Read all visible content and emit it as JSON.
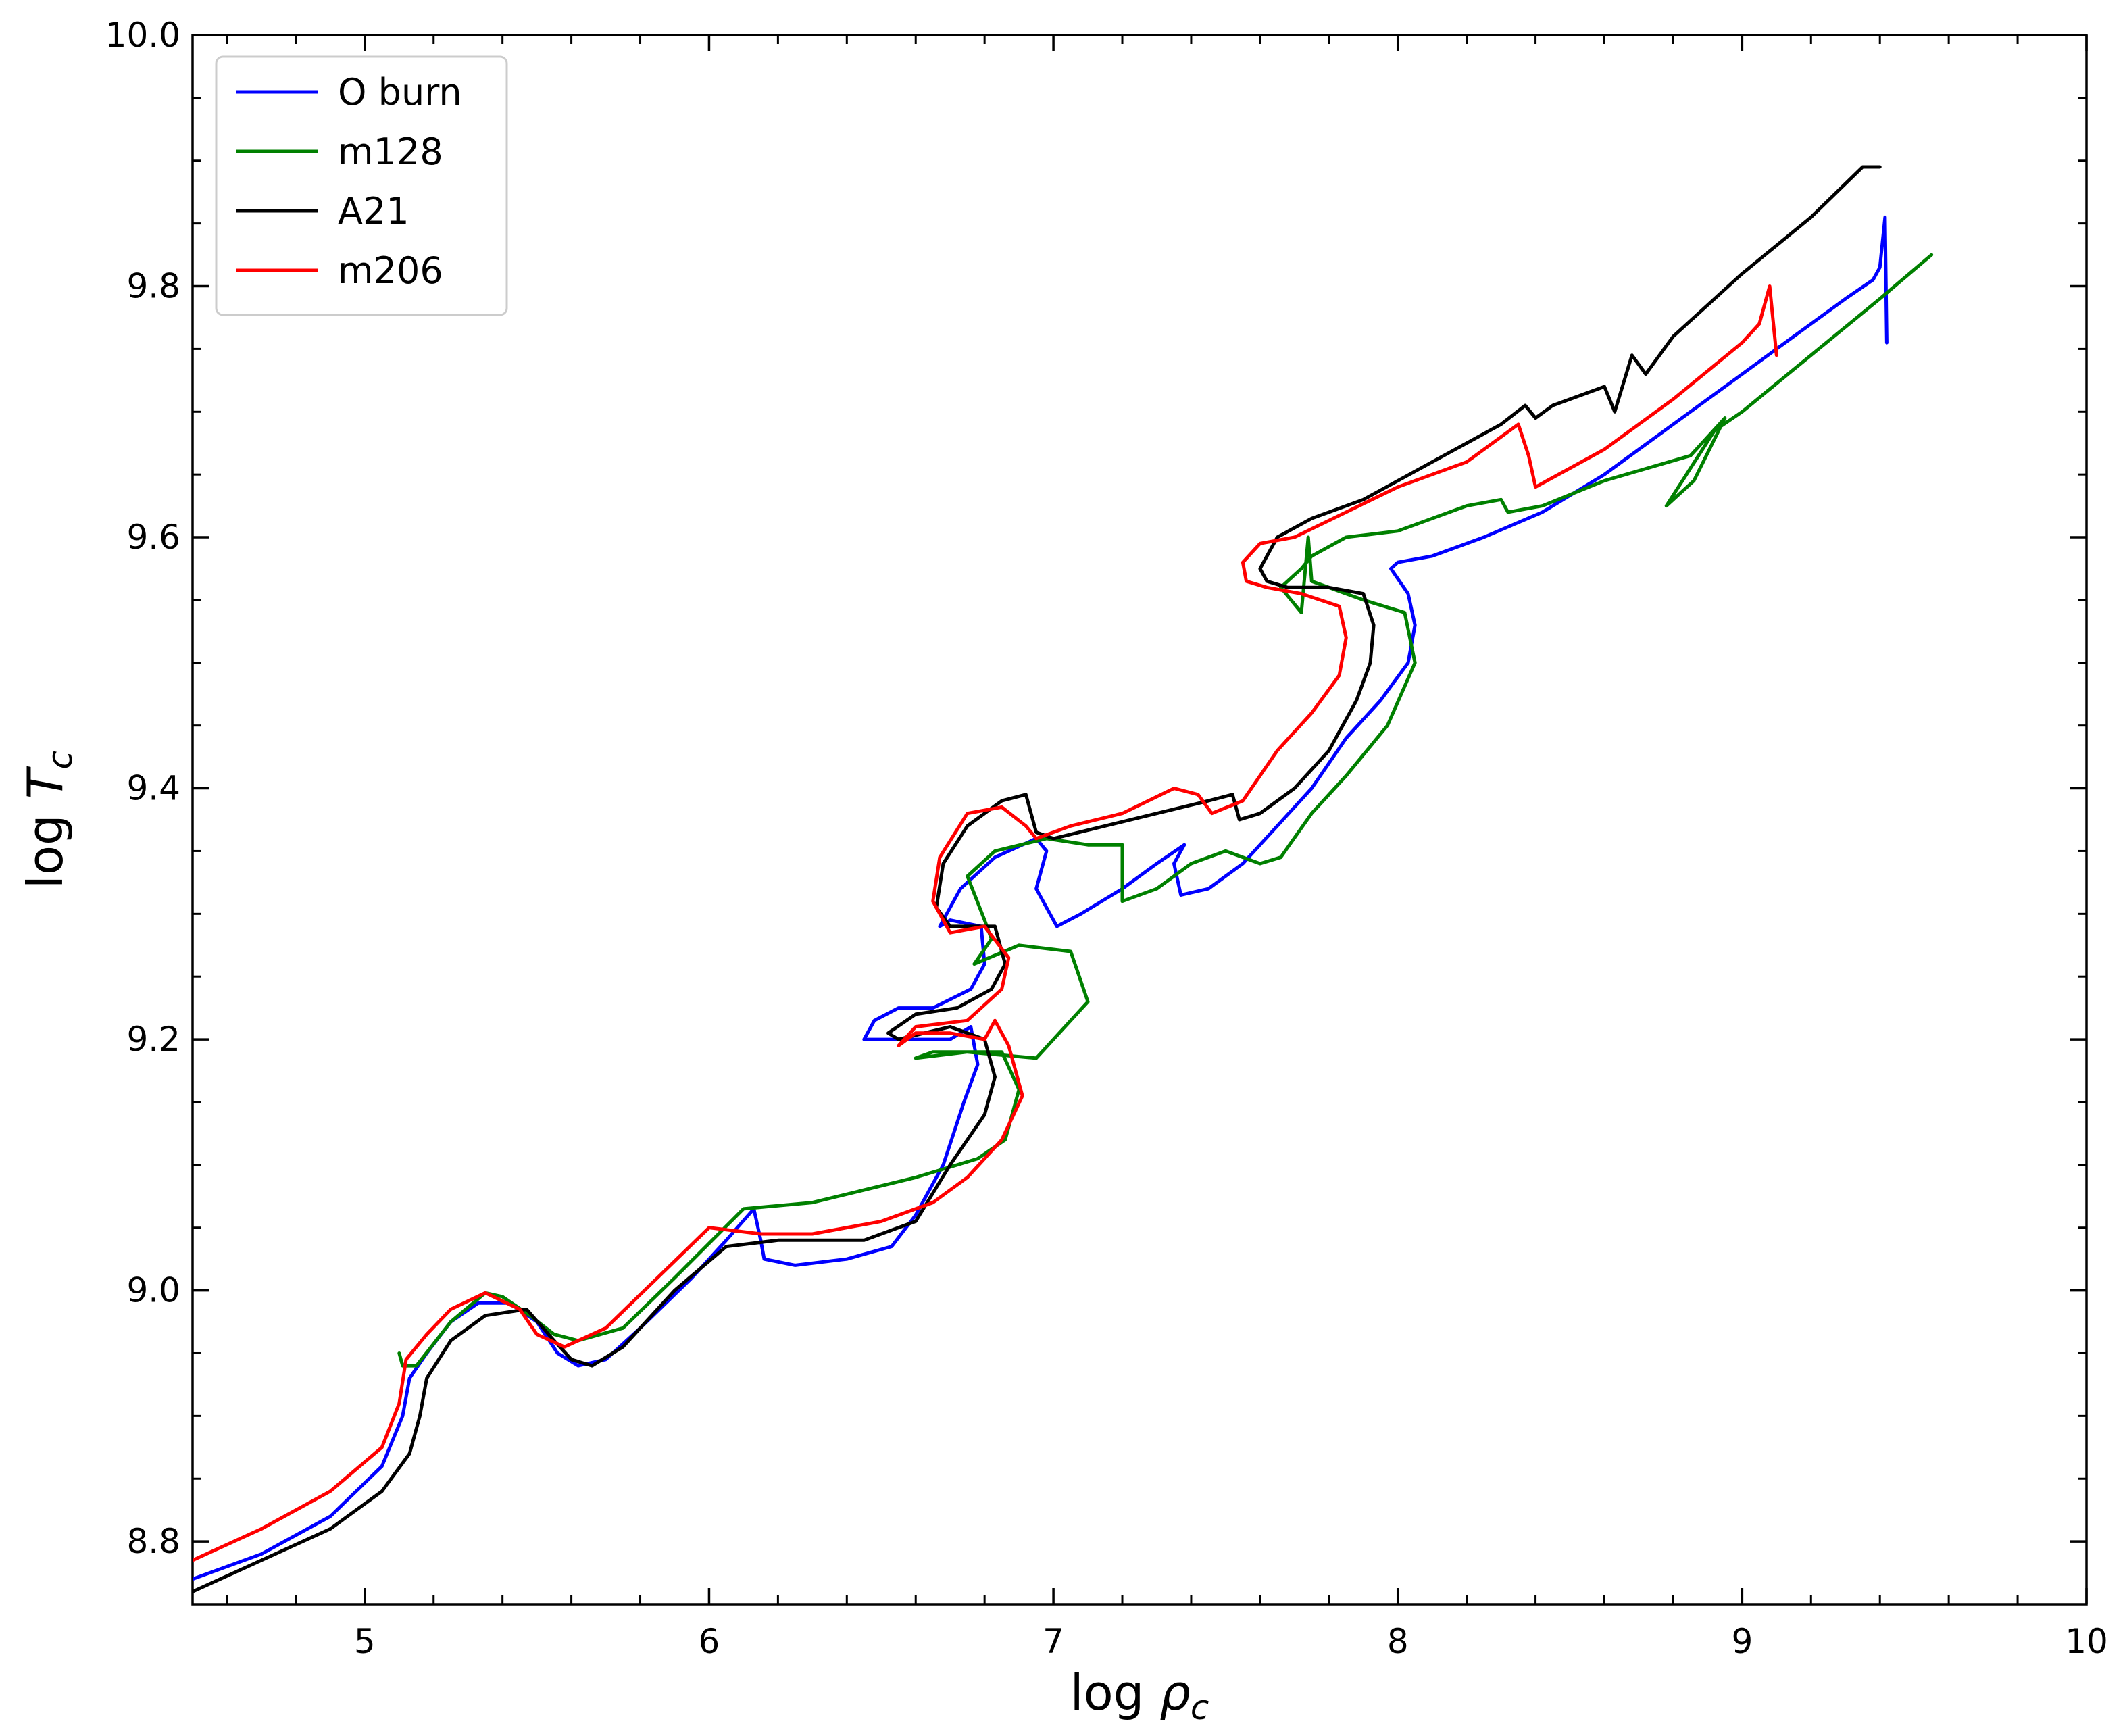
{
  "chart_data": {
    "type": "line",
    "xlabel": "log ρc",
    "ylabel": "log Tc",
    "xlim": [
      4.5,
      10.0
    ],
    "ylim": [
      8.75,
      10.0
    ],
    "grid": false,
    "legend_position": "top-left",
    "xticks": [
      5,
      6,
      7,
      8,
      9,
      10
    ],
    "xtick_labels": [
      "5",
      "6",
      "7",
      "8",
      "9",
      "10"
    ],
    "yticks": [
      8.8,
      9.0,
      9.2,
      9.4,
      9.6,
      9.8,
      10.0
    ],
    "ytick_labels": [
      "8.8",
      "9.0",
      "9.2",
      "9.4",
      "9.6",
      "9.8",
      "10.0"
    ],
    "series": [
      {
        "name": "O burn",
        "color": "#0000ff",
        "points": [
          [
            4.5,
            8.77
          ],
          [
            4.7,
            8.79
          ],
          [
            4.9,
            8.82
          ],
          [
            5.05,
            8.86
          ],
          [
            5.11,
            8.9
          ],
          [
            5.13,
            8.93
          ],
          [
            5.18,
            8.95
          ],
          [
            5.25,
            8.975
          ],
          [
            5.33,
            8.99
          ],
          [
            5.42,
            8.99
          ],
          [
            5.5,
            8.975
          ],
          [
            5.56,
            8.95
          ],
          [
            5.62,
            8.94
          ],
          [
            5.7,
            8.945
          ],
          [
            5.8,
            8.97
          ],
          [
            5.95,
            9.01
          ],
          [
            6.05,
            9.04
          ],
          [
            6.13,
            9.065
          ],
          [
            6.15,
            9.04
          ],
          [
            6.16,
            9.025
          ],
          [
            6.25,
            9.02
          ],
          [
            6.4,
            9.025
          ],
          [
            6.53,
            9.035
          ],
          [
            6.6,
            9.06
          ],
          [
            6.68,
            9.1
          ],
          [
            6.74,
            9.15
          ],
          [
            6.78,
            9.18
          ],
          [
            6.76,
            9.21
          ],
          [
            6.7,
            9.2
          ],
          [
            6.55,
            9.2
          ],
          [
            6.45,
            9.2
          ],
          [
            6.48,
            9.215
          ],
          [
            6.55,
            9.225
          ],
          [
            6.65,
            9.225
          ],
          [
            6.76,
            9.24
          ],
          [
            6.8,
            9.26
          ],
          [
            6.79,
            9.29
          ],
          [
            6.7,
            9.295
          ],
          [
            6.67,
            9.29
          ],
          [
            6.73,
            9.32
          ],
          [
            6.83,
            9.345
          ],
          [
            6.95,
            9.36
          ],
          [
            6.98,
            9.35
          ],
          [
            6.95,
            9.32
          ],
          [
            7.01,
            9.29
          ],
          [
            7.08,
            9.3
          ],
          [
            7.2,
            9.32
          ],
          [
            7.3,
            9.34
          ],
          [
            7.38,
            9.355
          ],
          [
            7.35,
            9.34
          ],
          [
            7.37,
            9.315
          ],
          [
            7.45,
            9.32
          ],
          [
            7.55,
            9.34
          ],
          [
            7.65,
            9.37
          ],
          [
            7.75,
            9.4
          ],
          [
            7.85,
            9.44
          ],
          [
            7.95,
            9.47
          ],
          [
            8.03,
            9.5
          ],
          [
            8.05,
            9.53
          ],
          [
            8.03,
            9.555
          ],
          [
            7.98,
            9.575
          ],
          [
            8.0,
            9.58
          ],
          [
            8.1,
            9.585
          ],
          [
            8.25,
            9.6
          ],
          [
            8.42,
            9.62
          ],
          [
            8.6,
            9.65
          ],
          [
            8.8,
            9.69
          ],
          [
            9.0,
            9.73
          ],
          [
            9.15,
            9.76
          ],
          [
            9.3,
            9.79
          ],
          [
            9.38,
            9.805
          ],
          [
            9.4,
            9.815
          ],
          [
            9.415,
            9.855
          ],
          [
            9.42,
            9.755
          ]
        ]
      },
      {
        "name": "m128",
        "color": "#008000",
        "points": [
          [
            9.55,
            9.825
          ],
          [
            9.4,
            9.79
          ],
          [
            9.2,
            9.745
          ],
          [
            9.0,
            9.7
          ],
          [
            8.92,
            9.685
          ],
          [
            8.78,
            9.625
          ],
          [
            8.86,
            9.645
          ],
          [
            8.95,
            9.695
          ],
          [
            8.85,
            9.665
          ],
          [
            8.6,
            9.645
          ],
          [
            8.42,
            9.625
          ],
          [
            8.32,
            9.62
          ],
          [
            8.3,
            9.63
          ],
          [
            8.2,
            9.625
          ],
          [
            8.0,
            9.605
          ],
          [
            7.85,
            9.6
          ],
          [
            7.75,
            9.585
          ],
          [
            7.72,
            9.575
          ],
          [
            7.66,
            9.56
          ],
          [
            7.72,
            9.54
          ],
          [
            7.74,
            9.6
          ],
          [
            7.75,
            9.565
          ],
          [
            7.9,
            9.55
          ],
          [
            8.02,
            9.54
          ],
          [
            8.05,
            9.5
          ],
          [
            7.97,
            9.45
          ],
          [
            7.85,
            9.41
          ],
          [
            7.75,
            9.38
          ],
          [
            7.66,
            9.345
          ],
          [
            7.6,
            9.34
          ],
          [
            7.5,
            9.35
          ],
          [
            7.4,
            9.34
          ],
          [
            7.3,
            9.32
          ],
          [
            7.2,
            9.31
          ],
          [
            7.2,
            9.355
          ],
          [
            7.1,
            9.355
          ],
          [
            6.98,
            9.36
          ],
          [
            6.83,
            9.35
          ],
          [
            6.75,
            9.33
          ],
          [
            6.8,
            9.295
          ],
          [
            6.82,
            9.28
          ],
          [
            6.77,
            9.26
          ],
          [
            6.9,
            9.275
          ],
          [
            7.05,
            9.27
          ],
          [
            7.1,
            9.23
          ],
          [
            6.95,
            9.185
          ],
          [
            6.75,
            9.19
          ],
          [
            6.6,
            9.185
          ],
          [
            6.65,
            9.19
          ],
          [
            6.85,
            9.19
          ],
          [
            6.9,
            9.16
          ],
          [
            6.86,
            9.12
          ],
          [
            6.78,
            9.105
          ],
          [
            6.6,
            9.09
          ],
          [
            6.3,
            9.07
          ],
          [
            6.1,
            9.065
          ],
          [
            5.9,
            9.01
          ],
          [
            5.75,
            8.97
          ],
          [
            5.62,
            8.96
          ],
          [
            5.55,
            8.965
          ],
          [
            5.48,
            8.98
          ],
          [
            5.4,
            8.995
          ],
          [
            5.35,
            8.998
          ],
          [
            5.25,
            8.975
          ],
          [
            5.15,
            8.94
          ],
          [
            5.11,
            8.94
          ],
          [
            5.1,
            8.95
          ]
        ]
      },
      {
        "name": "A21",
        "color": "#000000",
        "points": [
          [
            4.5,
            8.76
          ],
          [
            4.7,
            8.785
          ],
          [
            4.9,
            8.81
          ],
          [
            5.05,
            8.84
          ],
          [
            5.13,
            8.87
          ],
          [
            5.16,
            8.9
          ],
          [
            5.18,
            8.93
          ],
          [
            5.25,
            8.96
          ],
          [
            5.35,
            8.98
          ],
          [
            5.47,
            8.985
          ],
          [
            5.55,
            8.96
          ],
          [
            5.6,
            8.945
          ],
          [
            5.66,
            8.94
          ],
          [
            5.75,
            8.955
          ],
          [
            5.9,
            9.0
          ],
          [
            6.05,
            9.035
          ],
          [
            6.2,
            9.04
          ],
          [
            6.45,
            9.04
          ],
          [
            6.6,
            9.055
          ],
          [
            6.7,
            9.1
          ],
          [
            6.8,
            9.14
          ],
          [
            6.83,
            9.17
          ],
          [
            6.8,
            9.2
          ],
          [
            6.7,
            9.21
          ],
          [
            6.55,
            9.2
          ],
          [
            6.52,
            9.205
          ],
          [
            6.6,
            9.22
          ],
          [
            6.72,
            9.225
          ],
          [
            6.82,
            9.24
          ],
          [
            6.86,
            9.26
          ],
          [
            6.83,
            9.29
          ],
          [
            6.7,
            9.29
          ],
          [
            6.66,
            9.305
          ],
          [
            6.68,
            9.34
          ],
          [
            6.75,
            9.37
          ],
          [
            6.85,
            9.39
          ],
          [
            6.92,
            9.395
          ],
          [
            6.95,
            9.365
          ],
          [
            7.0,
            9.36
          ],
          [
            7.15,
            9.37
          ],
          [
            7.3,
            9.38
          ],
          [
            7.45,
            9.39
          ],
          [
            7.52,
            9.395
          ],
          [
            7.54,
            9.375
          ],
          [
            7.6,
            9.38
          ],
          [
            7.7,
            9.4
          ],
          [
            7.8,
            9.43
          ],
          [
            7.88,
            9.47
          ],
          [
            7.92,
            9.5
          ],
          [
            7.93,
            9.53
          ],
          [
            7.9,
            9.555
          ],
          [
            7.8,
            9.56
          ],
          [
            7.68,
            9.56
          ],
          [
            7.62,
            9.565
          ],
          [
            7.6,
            9.575
          ],
          [
            7.65,
            9.6
          ],
          [
            7.75,
            9.615
          ],
          [
            7.9,
            9.63
          ],
          [
            8.1,
            9.66
          ],
          [
            8.3,
            9.69
          ],
          [
            8.37,
            9.705
          ],
          [
            8.4,
            9.695
          ],
          [
            8.45,
            9.705
          ],
          [
            8.6,
            9.72
          ],
          [
            8.63,
            9.7
          ],
          [
            8.68,
            9.745
          ],
          [
            8.72,
            9.73
          ],
          [
            8.8,
            9.76
          ],
          [
            9.0,
            9.81
          ],
          [
            9.2,
            9.855
          ],
          [
            9.35,
            9.895
          ],
          [
            9.4,
            9.895
          ]
        ]
      },
      {
        "name": "m206",
        "color": "#ff0000",
        "points": [
          [
            4.5,
            8.785
          ],
          [
            4.7,
            8.81
          ],
          [
            4.9,
            8.84
          ],
          [
            5.05,
            8.875
          ],
          [
            5.1,
            8.91
          ],
          [
            5.12,
            8.945
          ],
          [
            5.18,
            8.965
          ],
          [
            5.25,
            8.985
          ],
          [
            5.35,
            8.998
          ],
          [
            5.45,
            8.985
          ],
          [
            5.5,
            8.965
          ],
          [
            5.58,
            8.955
          ],
          [
            5.7,
            8.97
          ],
          [
            5.85,
            9.01
          ],
          [
            6.0,
            9.05
          ],
          [
            6.15,
            9.045
          ],
          [
            6.3,
            9.045
          ],
          [
            6.5,
            9.055
          ],
          [
            6.65,
            9.07
          ],
          [
            6.75,
            9.09
          ],
          [
            6.85,
            9.12
          ],
          [
            6.91,
            9.155
          ],
          [
            6.87,
            9.195
          ],
          [
            6.83,
            9.215
          ],
          [
            6.8,
            9.2
          ],
          [
            6.7,
            9.205
          ],
          [
            6.6,
            9.205
          ],
          [
            6.55,
            9.195
          ],
          [
            6.6,
            9.21
          ],
          [
            6.75,
            9.215
          ],
          [
            6.85,
            9.24
          ],
          [
            6.87,
            9.265
          ],
          [
            6.8,
            9.29
          ],
          [
            6.7,
            9.285
          ],
          [
            6.65,
            9.31
          ],
          [
            6.67,
            9.345
          ],
          [
            6.75,
            9.38
          ],
          [
            6.85,
            9.385
          ],
          [
            6.92,
            9.37
          ],
          [
            6.95,
            9.36
          ],
          [
            7.05,
            9.37
          ],
          [
            7.2,
            9.38
          ],
          [
            7.35,
            9.4
          ],
          [
            7.42,
            9.395
          ],
          [
            7.46,
            9.38
          ],
          [
            7.55,
            9.39
          ],
          [
            7.65,
            9.43
          ],
          [
            7.75,
            9.46
          ],
          [
            7.83,
            9.49
          ],
          [
            7.85,
            9.52
          ],
          [
            7.83,
            9.545
          ],
          [
            7.72,
            9.555
          ],
          [
            7.62,
            9.56
          ],
          [
            7.56,
            9.565
          ],
          [
            7.55,
            9.58
          ],
          [
            7.6,
            9.595
          ],
          [
            7.7,
            9.6
          ],
          [
            7.85,
            9.62
          ],
          [
            8.0,
            9.64
          ],
          [
            8.2,
            9.66
          ],
          [
            8.35,
            9.69
          ],
          [
            8.38,
            9.665
          ],
          [
            8.4,
            9.64
          ],
          [
            8.6,
            9.67
          ],
          [
            8.8,
            9.71
          ],
          [
            9.0,
            9.755
          ],
          [
            9.05,
            9.77
          ],
          [
            9.08,
            9.8
          ],
          [
            9.1,
            9.745
          ]
        ]
      }
    ]
  }
}
